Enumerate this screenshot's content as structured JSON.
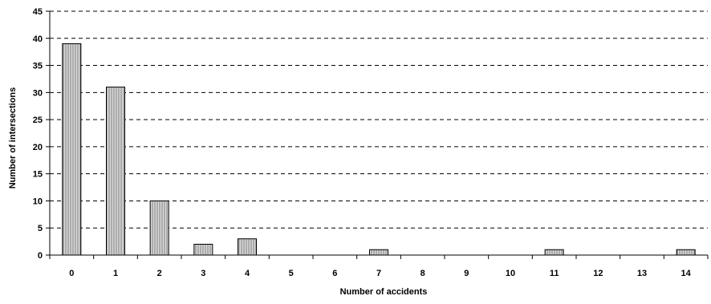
{
  "chart_data": {
    "type": "bar",
    "title": "",
    "xlabel": "Number of accidents",
    "ylabel": "Number of intersections",
    "categories": [
      "0",
      "1",
      "2",
      "3",
      "4",
      "5",
      "6",
      "7",
      "8",
      "9",
      "10",
      "11",
      "12",
      "13",
      "14"
    ],
    "values": [
      39,
      31,
      10,
      2,
      3,
      0,
      0,
      1,
      0,
      0,
      0,
      1,
      0,
      0,
      1
    ],
    "ylim": [
      0,
      45
    ],
    "yticks": [
      "0",
      "5",
      "10",
      "15",
      "20",
      "25",
      "30",
      "35",
      "40",
      "45"
    ],
    "grid": "horizontal-dashed",
    "legend": "none",
    "bar_fill": "#d9d9d9",
    "bar_stripe": "#808080",
    "bar_stroke": "#000000",
    "grid_color": "#000000"
  }
}
